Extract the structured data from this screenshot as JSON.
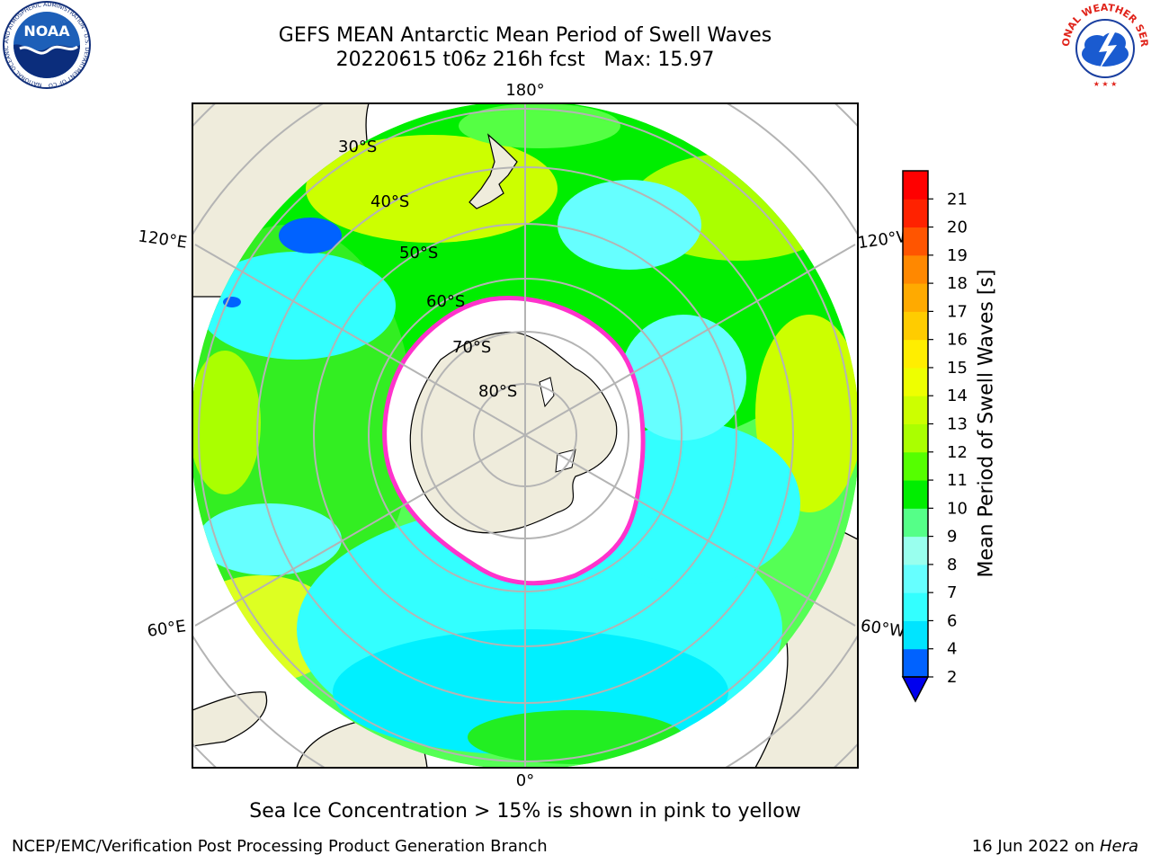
{
  "title": {
    "line1": "GEFS MEAN Antarctic Mean Period of Swell Waves",
    "line2": "20220615 t06z 216h fcst   Max: 15.97"
  },
  "map": {
    "projection": "south-polar-stereographic",
    "longitude_labels": [
      "180°",
      "120°E",
      "120°W",
      "60°E",
      "60°W",
      "0°"
    ],
    "latitude_labels": [
      "30°S",
      "40°S",
      "50°S",
      "60°S",
      "70°S",
      "80°S"
    ],
    "land_color": "#efecdc",
    "sea_ice_color": "#ffffff",
    "sea_ice_edge_color": "#ff33cc",
    "grid_color": "#b4b4b4"
  },
  "colorbar": {
    "title": "Mean Period of Swell Waves [s]",
    "ticks": [
      "2",
      "4",
      "6",
      "7",
      "8",
      "9",
      "10",
      "11",
      "12",
      "13",
      "14",
      "15",
      "16",
      "17",
      "18",
      "19",
      "20",
      "21"
    ],
    "colors": [
      "#0062ff",
      "#00e4ff",
      "#33ffff",
      "#66ffff",
      "#99ffee",
      "#55ff88",
      "#00ee00",
      "#55ff00",
      "#aaff00",
      "#ccff00",
      "#eeff00",
      "#ffee00",
      "#ffcc00",
      "#ffaa00",
      "#ff8800",
      "#ff5500",
      "#ff2200",
      "#ff0000"
    ],
    "under_color": "#0000ee"
  },
  "note": "Sea Ice Concentration > 15% is shown in pink to yellow",
  "footer": {
    "left": "NCEP/EMC/Verification Post Processing Product Generation Branch",
    "date": "16 Jun 2022 on ",
    "machine": "Hera"
  },
  "logos": {
    "noaa_text": "NOAA",
    "noaa_ring": "NATIONAL OCEANIC AND ATMOSPHERIC ADMINISTRATION · U.S. DEPARTMENT OF COMMERCE",
    "nws_ring": "NATIONAL WEATHER SERVICE"
  }
}
